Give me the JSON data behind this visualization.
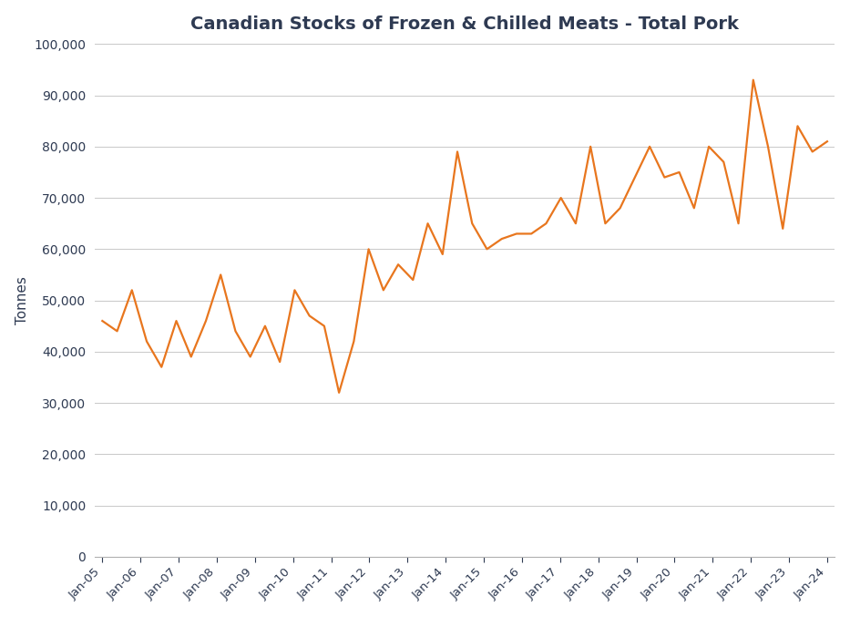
{
  "title": "Canadian Stocks of Frozen & Chilled Meats - Total Pork",
  "ylabel": "Tonnes",
  "line_color": "#E8761E",
  "line_width": 1.6,
  "background_color": "#ffffff",
  "grid_color": "#c8c8c8",
  "ylim": [
    0,
    100000
  ],
  "yticks": [
    0,
    10000,
    20000,
    30000,
    40000,
    50000,
    60000,
    70000,
    80000,
    90000,
    100000
  ],
  "title_color": "#2E3A52",
  "tick_label_color": "#2E3A52",
  "axis_label_color": "#2E3A52",
  "values": [
    46000,
    44000,
    52000,
    42000,
    37000,
    46000,
    39000,
    46000,
    55000,
    44000,
    39000,
    45000,
    38000,
    52000,
    47000,
    45000,
    32000,
    42000,
    60000,
    52000,
    57000,
    54000,
    65000,
    59000,
    79000,
    65000,
    60000,
    62000,
    63000,
    63000,
    65000,
    70000,
    65000,
    80000,
    65000,
    68000,
    74000,
    80000,
    74000,
    75000,
    68000,
    80000,
    77000,
    65000,
    93000,
    80000,
    64000,
    84000,
    79000,
    81000
  ],
  "n_per_year": 2.6315789,
  "xtick_labels": [
    "Jan-05",
    "Jan-06",
    "Jan-07",
    "Jan-08",
    "Jan-09",
    "Jan-10",
    "Jan-11",
    "Jan-12",
    "Jan-13",
    "Jan-14",
    "Jan-15",
    "Jan-16",
    "Jan-17",
    "Jan-18",
    "Jan-19",
    "Jan-20",
    "Jan-21",
    "Jan-22",
    "Jan-23",
    "Jan-24"
  ],
  "n_total": 50,
  "x_start_year": 2005,
  "x_end_year": 2024
}
